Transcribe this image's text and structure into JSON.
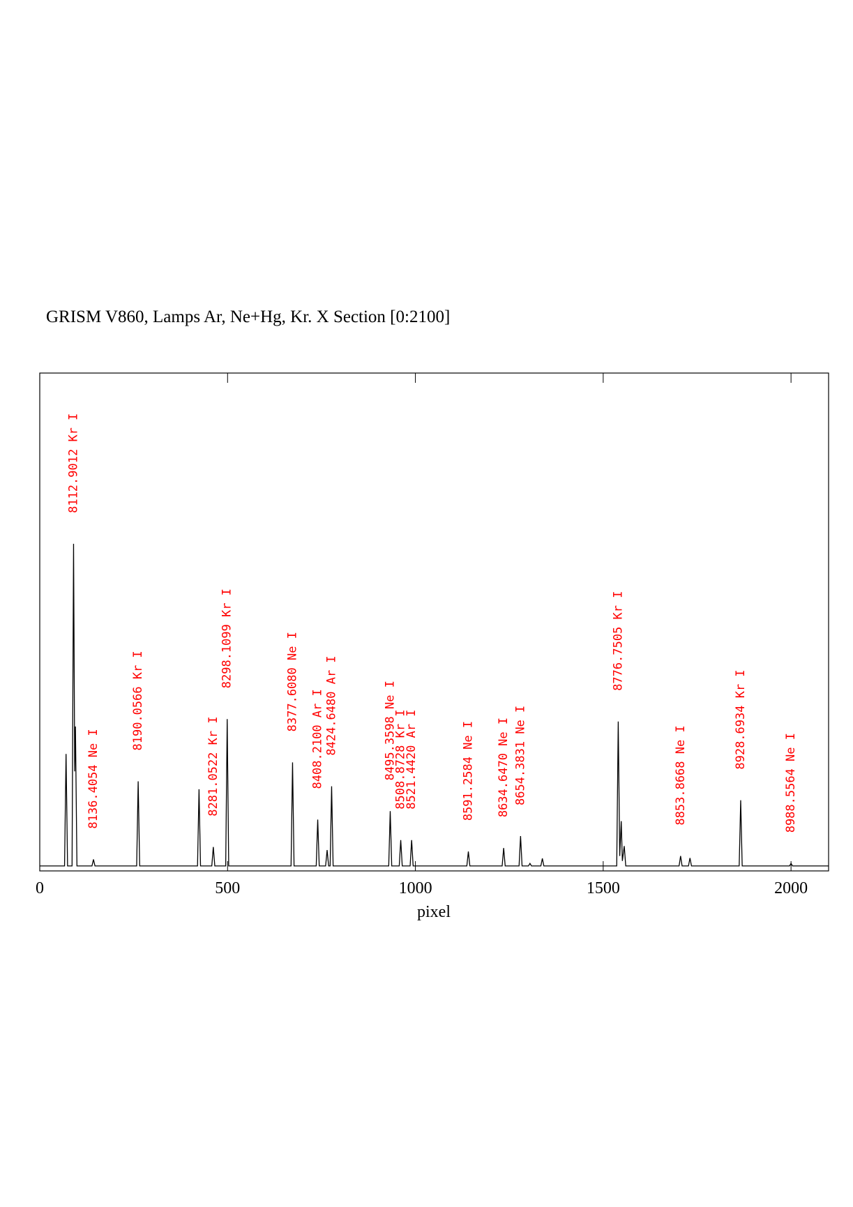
{
  "chart_data": {
    "type": "line",
    "title": "GRISM V860, Lamps Ar, Ne+Hg, Kr. X Section [0:2100]",
    "xlabel": "pixel",
    "xlim": [
      0,
      2100
    ],
    "xticks": [
      0,
      500,
      1000,
      1500,
      2000
    ],
    "ylim": [
      0,
      100
    ],
    "series": [
      {
        "color": "#000000",
        "x": [
          0,
          66,
          70,
          74,
          86,
          90,
          93,
          95,
          99,
          139,
          143,
          147,
          258,
          262,
          266,
          420,
          424,
          428,
          458,
          462,
          466,
          495,
          499,
          503,
          669,
          673,
          677,
          736,
          740,
          744,
          761,
          765,
          769,
          773,
          777,
          781,
          929,
          933,
          937,
          957,
          961,
          965,
          986,
          990,
          994,
          1137,
          1141,
          1145,
          1231,
          1235,
          1239,
          1276,
          1280,
          1284,
          1301,
          1305,
          1309,
          1334,
          1338,
          1342,
          1536,
          1540,
          1544,
          1548,
          1551,
          1556,
          1560,
          1702,
          1706,
          1710,
          1727,
          1731,
          1735,
          1862,
          1866,
          1870,
          1996,
          2000,
          2004,
          2100
        ],
        "values": [
          1,
          1,
          23.5,
          1,
          1,
          65.7,
          20,
          29,
          1,
          1,
          2.3,
          1,
          1,
          18,
          1,
          1,
          16.4,
          1,
          1,
          4.8,
          1,
          1,
          30.5,
          1,
          1,
          21.8,
          1,
          1,
          10.3,
          1,
          1,
          4.2,
          1,
          1,
          17,
          1,
          1,
          12,
          1,
          1,
          6.2,
          1,
          1,
          6.2,
          1,
          1,
          3.9,
          1,
          1,
          4.6,
          1,
          1,
          7,
          1,
          1,
          1.5,
          1,
          1,
          2.5,
          1,
          1,
          30,
          3,
          10,
          2,
          5,
          1,
          1,
          3,
          1,
          1,
          2.6,
          1,
          1,
          14.2,
          1,
          1,
          1.5,
          1,
          1
        ]
      }
    ],
    "annotation_color": "#ff0000",
    "annotations": [
      {
        "x": 90,
        "text": "8112.9012 Kr I"
      },
      {
        "x": 143,
        "text": "8136.4054 Ne I"
      },
      {
        "x": 262,
        "text": "8190.0566 Kr I"
      },
      {
        "x": 462,
        "text": "8281.0522 Kr I"
      },
      {
        "x": 499,
        "text": "8298.1099 Kr I"
      },
      {
        "x": 673,
        "text": "8377.6080 Ne I"
      },
      {
        "x": 740,
        "text": "8408.2100 Ar I"
      },
      {
        "x": 777,
        "text": "8424.6480 Ar I"
      },
      {
        "x": 933,
        "text": "8495.3598 Ne I"
      },
      {
        "x": 961,
        "text": "8508.8728 Kr I"
      },
      {
        "x": 990,
        "text": "8521.4420 Ar I"
      },
      {
        "x": 1141,
        "text": "8591.2584 Ne I"
      },
      {
        "x": 1235,
        "text": "8634.6470 Ne I"
      },
      {
        "x": 1280,
        "text": "8654.3831 Ne I"
      },
      {
        "x": 1540,
        "text": "8776.7505 Kr I"
      },
      {
        "x": 1706,
        "text": "8853.8668 Ne I"
      },
      {
        "x": 1866,
        "text": "8928.6934 Kr I"
      },
      {
        "x": 2000,
        "text": "8988.5564 Ne I"
      }
    ]
  }
}
